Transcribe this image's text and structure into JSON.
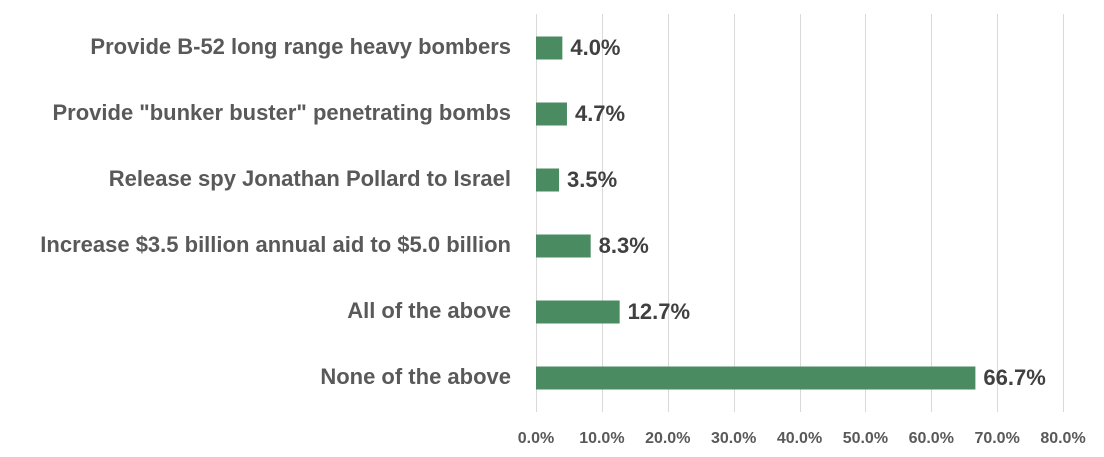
{
  "chart_data": {
    "type": "bar",
    "orientation": "horizontal",
    "categories": [
      "Provide B-52 long range heavy bombers",
      "Provide \"bunker buster\" penetrating bombs",
      "Release spy Jonathan Pollard to Israel",
      "Increase $3.5 billion annual aid to $5.0 billion",
      "All of the above",
      "None of the above"
    ],
    "values": [
      4.0,
      4.7,
      3.5,
      8.3,
      12.7,
      66.7
    ],
    "value_labels": [
      "4.0%",
      "4.7%",
      "3.5%",
      "8.3%",
      "12.7%",
      "66.7%"
    ],
    "xlim": [
      0,
      80
    ],
    "xticks": [
      0,
      10,
      20,
      30,
      40,
      50,
      60,
      70,
      80
    ],
    "xtick_labels": [
      "0.0%",
      "10.0%",
      "20.0%",
      "30.0%",
      "40.0%",
      "50.0%",
      "60.0%",
      "70.0%",
      "80.0%"
    ],
    "grid": "vertical",
    "bar_color": "#4a8b62",
    "title": "",
    "xlabel": "",
    "ylabel": ""
  }
}
